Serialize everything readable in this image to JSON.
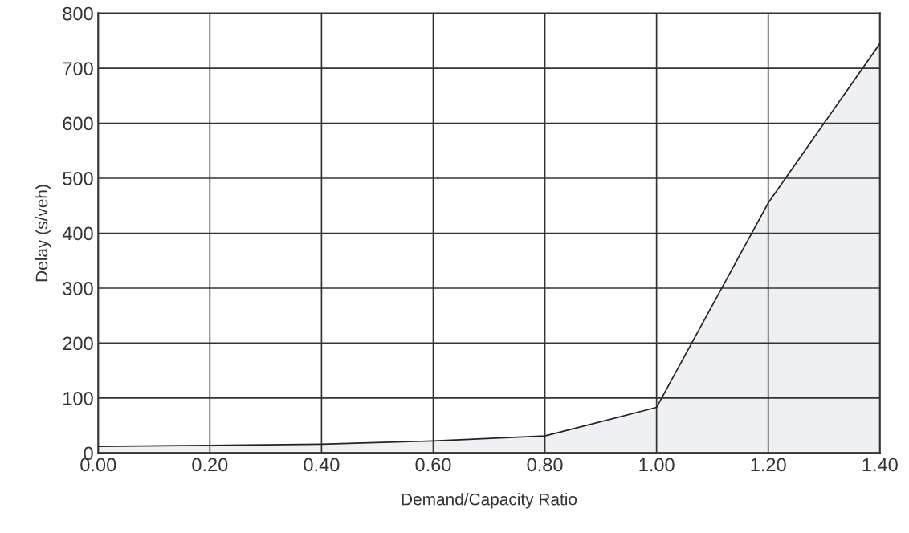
{
  "chart_data": {
    "type": "area",
    "xlabel": "Demand/Capacity Ratio",
    "ylabel": "Delay (s/veh)",
    "x": [
      0.0,
      0.2,
      0.4,
      0.6,
      0.8,
      1.0,
      1.2,
      1.4
    ],
    "series": [
      {
        "color": "#eef0f3",
        "values": [
          12,
          14,
          16,
          22,
          31,
          83,
          455,
          745
        ]
      }
    ],
    "xlim": [
      0,
      1.4
    ],
    "ylim": [
      0,
      800
    ],
    "xticks": [
      {
        "value": 0,
        "label": "0.00"
      },
      {
        "value": 0.2,
        "label": "0.20"
      },
      {
        "value": 0.4,
        "label": "0.40"
      },
      {
        "value": 0.6,
        "label": "0.60"
      },
      {
        "value": 0.8,
        "label": "0.80"
      },
      {
        "value": 1.0,
        "label": "1.00"
      },
      {
        "value": 1.2,
        "label": "1.20"
      },
      {
        "value": 1.4,
        "label": "1.40"
      }
    ],
    "yticks": [
      0,
      100,
      200,
      300,
      400,
      500,
      600,
      700,
      800
    ],
    "grid": true
  }
}
